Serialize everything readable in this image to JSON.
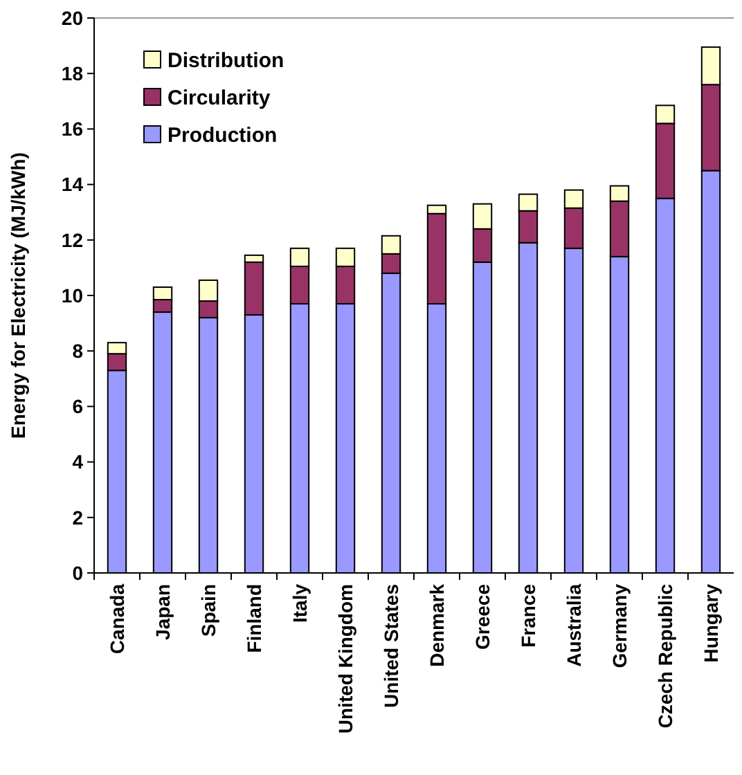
{
  "chart_data": {
    "type": "bar",
    "stacked": true,
    "ylabel": "Energy for Electricity (MJ/kWh)",
    "categories": [
      "Canada",
      "Japan",
      "Spain",
      "Finland",
      "Italy",
      "United Kingdom",
      "United States",
      "Denmark",
      "Greece",
      "France",
      "Australia",
      "Germany",
      "Czech Republic",
      "Hungary"
    ],
    "series": [
      {
        "name": "Production",
        "color": "#9999ff",
        "values": [
          7.3,
          9.4,
          9.2,
          9.3,
          9.7,
          9.7,
          10.8,
          9.7,
          11.2,
          11.9,
          11.7,
          11.4,
          13.5,
          14.5
        ]
      },
      {
        "name": "Circularity",
        "color": "#993366",
        "values": [
          0.6,
          0.45,
          0.6,
          1.9,
          1.35,
          1.35,
          0.7,
          3.25,
          1.2,
          1.15,
          1.45,
          2.0,
          2.7,
          3.1
        ]
      },
      {
        "name": "Distribution",
        "color": "#ffffcc",
        "values": [
          0.4,
          0.45,
          0.75,
          0.25,
          0.65,
          0.65,
          0.65,
          0.3,
          0.9,
          0.6,
          0.65,
          0.55,
          0.65,
          1.35
        ]
      }
    ],
    "ylim": [
      0,
      20
    ],
    "yticks": [
      0,
      2,
      4,
      6,
      8,
      10,
      12,
      14,
      16,
      18,
      20
    ],
    "grid": false,
    "legend": "top left"
  }
}
